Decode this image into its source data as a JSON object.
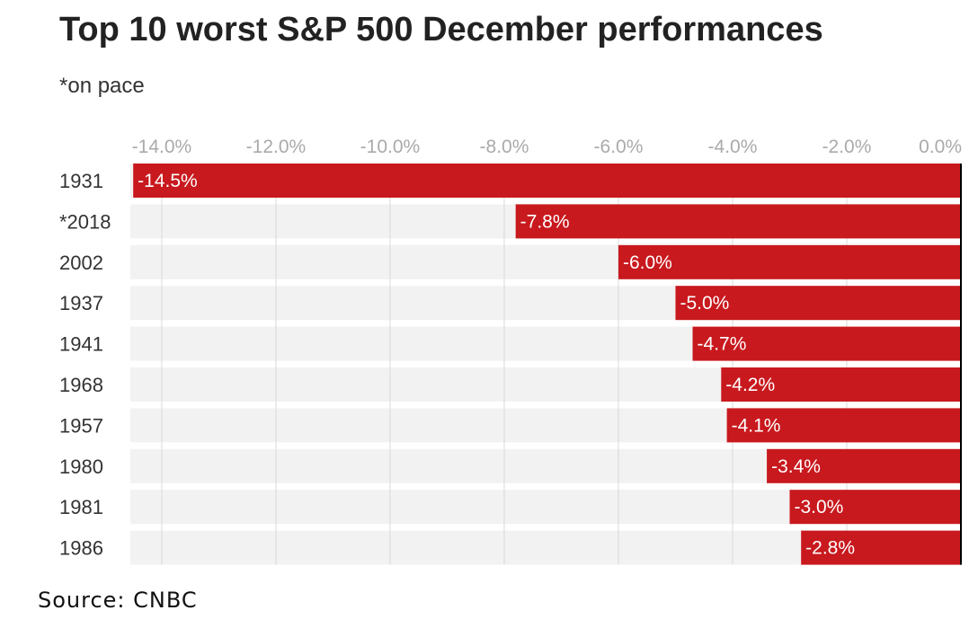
{
  "chart_data": {
    "type": "bar",
    "orientation": "horizontal",
    "title": "Top 10 worst S&P 500 December performances",
    "subtitle": "*on pace",
    "source": "Source: CNBC",
    "categories": [
      "1931",
      "*2018",
      "2002",
      "1937",
      "1941",
      "1968",
      "1957",
      "1980",
      "1981",
      "1986"
    ],
    "values": [
      -14.5,
      -7.8,
      -6.0,
      -5.0,
      -4.7,
      -4.2,
      -4.1,
      -3.4,
      -3.0,
      -2.8
    ],
    "value_labels": [
      "-14.5%",
      "-7.8%",
      "-6.0%",
      "-5.0%",
      "-4.7%",
      "-4.2%",
      "-4.1%",
      "-3.4%",
      "-3.0%",
      "-2.8%"
    ],
    "xticks": [
      -14,
      -12,
      -10,
      -8,
      -6,
      -4,
      -2,
      0
    ],
    "xtick_labels": [
      "-14.0%",
      "-12.0%",
      "-10.0%",
      "-8.0%",
      "-6.0%",
      "-4.0%",
      "-2.0%",
      "0.0%"
    ],
    "xlim": [
      -14.55,
      0
    ],
    "xlabel": "",
    "ylabel": "",
    "grid": true,
    "colors": {
      "bar": "#c8191e",
      "track": "#f2f2f2",
      "gridline": "#d9d9d9",
      "axis": "#000000"
    }
  }
}
